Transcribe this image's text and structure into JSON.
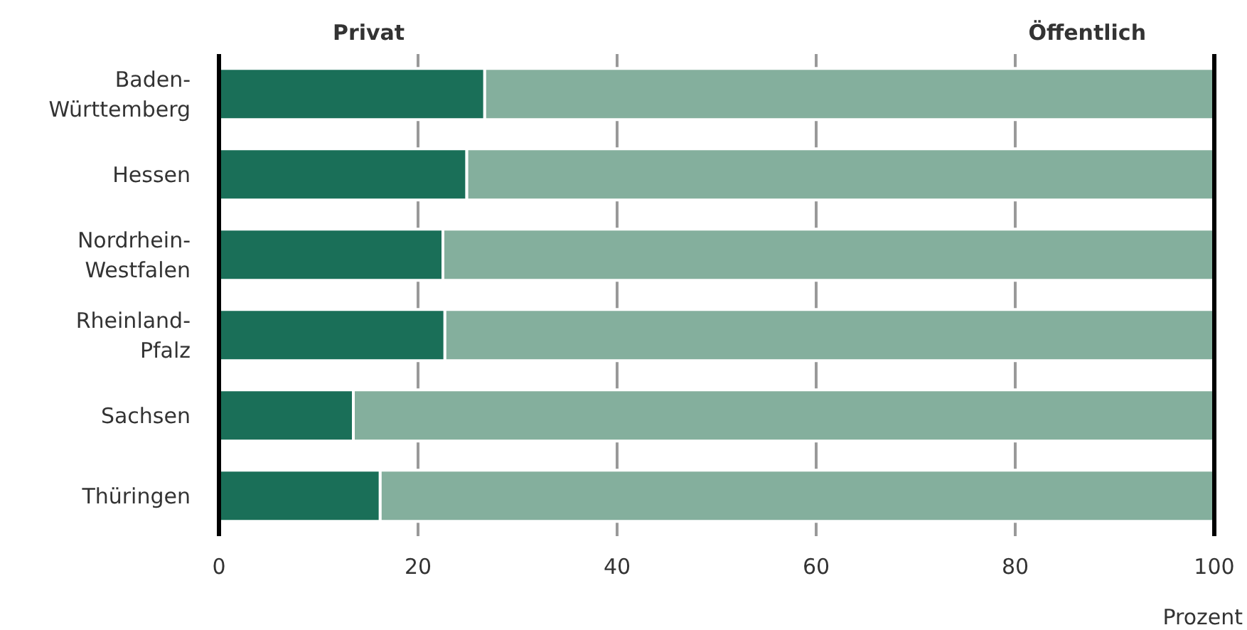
{
  "chart_data": {
    "type": "bar",
    "orientation": "horizontal",
    "stacked": true,
    "categories": [
      "Baden-Württemberg",
      "Hessen",
      "Nordrhein-Westfalen",
      "Rheinland-Pfalz",
      "Sachsen",
      "Thüringen"
    ],
    "series": [
      {
        "name": "Privat",
        "color": "#1a6f58",
        "values": [
          26.7,
          24.9,
          22.5,
          22.7,
          13.5,
          16.2
        ]
      },
      {
        "name": "Öffentlich",
        "color": "#84af9d",
        "values": [
          73.3,
          75.1,
          77.5,
          77.3,
          86.5,
          83.8
        ]
      }
    ],
    "xlim": [
      0,
      100
    ],
    "xticks": [
      0,
      20,
      40,
      60,
      80,
      100
    ],
    "xlabel": "Prozent",
    "grid": "x",
    "legend": "top"
  }
}
